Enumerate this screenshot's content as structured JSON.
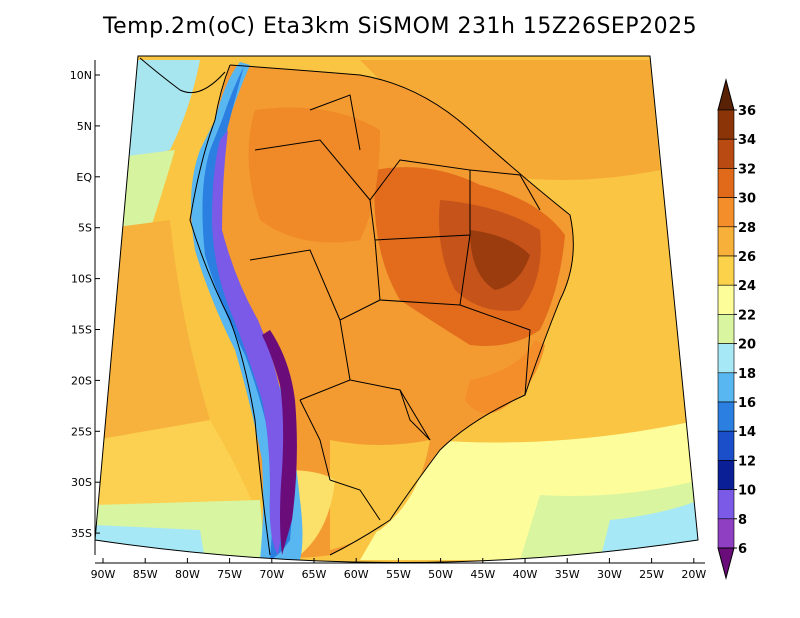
{
  "title": "Temp.2m(oC) Eta3km SiSMOM 231h 15Z26SEP2025",
  "map": {
    "variable": "2 m temperature",
    "units": "oC",
    "model": "Eta3km",
    "forecast_hour": "231h",
    "valid_time": "15Z26SEP2025",
    "lat_labels": [
      "10N",
      "5N",
      "EQ",
      "5S",
      "10S",
      "15S",
      "20S",
      "25S",
      "30S",
      "35S"
    ],
    "lon_labels": [
      "90W",
      "85W",
      "80W",
      "75W",
      "70W",
      "65W",
      "60W",
      "55W",
      "50W",
      "45W",
      "40W",
      "35W",
      "30W",
      "25W",
      "20W"
    ]
  },
  "colorbar": {
    "levels": [
      "6",
      "8",
      "10",
      "12",
      "14",
      "16",
      "18",
      "20",
      "22",
      "24",
      "26",
      "28",
      "30",
      "32",
      "34",
      "36"
    ],
    "colors": [
      "#6a0d7a",
      "#8e3fc2",
      "#7a5ae6",
      "#0a1e96",
      "#1a4fc9",
      "#2b7fe0",
      "#58b6f0",
      "#a6e8f5",
      "#d9f5a0",
      "#fdfd9a",
      "#fcd24a",
      "#f7b03a",
      "#f38e2a",
      "#e0691a",
      "#b94a12",
      "#8a3408",
      "#5a2204"
    ],
    "below_color": "#6a0d7a",
    "above_color": "#5a2204"
  }
}
